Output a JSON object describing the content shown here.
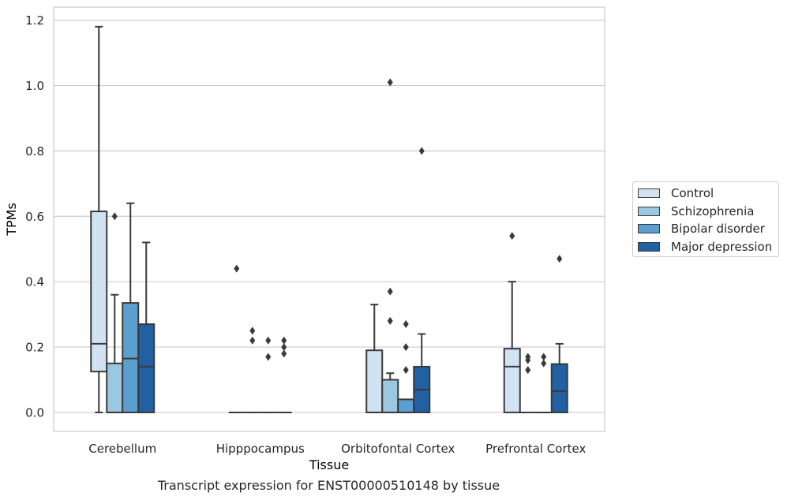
{
  "chart_data": {
    "type": "box",
    "title": "",
    "xlabel": "Tissue",
    "ylabel": "TPMs",
    "categories": [
      "Cerebellum",
      "Hipppocampus",
      "Orbitofontal Cortex",
      "Prefrontal Cortex"
    ],
    "yticks": [
      "0.0",
      "0.2",
      "0.4",
      "0.6",
      "0.8",
      "1.0",
      "1.2"
    ],
    "ylim": [
      -0.058,
      1.24
    ],
    "grid": true,
    "legend_position": "right",
    "series": [
      {
        "name": "Control",
        "color": "#d1e2f2",
        "boxes": [
          {
            "q1": 0.125,
            "median": 0.21,
            "q3": 0.615,
            "whisker_low": 0.0,
            "whisker_high": 1.18,
            "outliers": []
          },
          {
            "q1": 0.0,
            "median": 0.0,
            "q3": 0.0,
            "whisker_low": 0.0,
            "whisker_high": 0.0,
            "outliers": [
              0.44
            ]
          },
          {
            "q1": 0.0,
            "median": 0.0,
            "q3": 0.19,
            "whisker_low": 0.0,
            "whisker_high": 0.33,
            "outliers": []
          },
          {
            "q1": 0.0,
            "median": 0.14,
            "q3": 0.195,
            "whisker_low": 0.0,
            "whisker_high": 0.4,
            "outliers": [
              0.54
            ]
          }
        ]
      },
      {
        "name": "Schizophrenia",
        "color": "#9ac8e0",
        "boxes": [
          {
            "q1": 0.0,
            "median": 0.0,
            "q3": 0.15,
            "whisker_low": 0.0,
            "whisker_high": 0.36,
            "outliers": [
              0.6
            ]
          },
          {
            "q1": 0.0,
            "median": 0.0,
            "q3": 0.0,
            "whisker_low": 0.0,
            "whisker_high": 0.0,
            "outliers": [
              0.25,
              0.22
            ]
          },
          {
            "q1": 0.0,
            "median": 0.0,
            "q3": 0.1,
            "whisker_low": 0.0,
            "whisker_high": 0.12,
            "outliers": [
              1.01,
              0.37,
              0.28
            ]
          },
          {
            "q1": 0.0,
            "median": 0.0,
            "q3": 0.0,
            "whisker_low": 0.0,
            "whisker_high": 0.0,
            "outliers": [
              0.17,
              0.16,
              0.13
            ]
          }
        ]
      },
      {
        "name": "Bipolar disorder",
        "color": "#5a9fcf",
        "boxes": [
          {
            "q1": 0.0,
            "median": 0.165,
            "q3": 0.335,
            "whisker_low": 0.0,
            "whisker_high": 0.64,
            "outliers": []
          },
          {
            "q1": 0.0,
            "median": 0.0,
            "q3": 0.0,
            "whisker_low": 0.0,
            "whisker_high": 0.0,
            "outliers": [
              0.22,
              0.17
            ]
          },
          {
            "q1": 0.0,
            "median": 0.0,
            "q3": 0.04,
            "whisker_low": 0.0,
            "whisker_high": 0.04,
            "outliers": [
              0.27,
              0.2,
              0.13
            ]
          },
          {
            "q1": 0.0,
            "median": 0.0,
            "q3": 0.0,
            "whisker_low": 0.0,
            "whisker_high": 0.0,
            "outliers": [
              0.17,
              0.15
            ]
          }
        ]
      },
      {
        "name": "Major depression",
        "color": "#2060a3",
        "boxes": [
          {
            "q1": 0.0,
            "median": 0.14,
            "q3": 0.27,
            "whisker_low": 0.0,
            "whisker_high": 0.52,
            "outliers": []
          },
          {
            "q1": 0.0,
            "median": 0.0,
            "q3": 0.0,
            "whisker_low": 0.0,
            "whisker_high": 0.0,
            "outliers": [
              0.22,
              0.2,
              0.18
            ]
          },
          {
            "q1": 0.0,
            "median": 0.07,
            "q3": 0.14,
            "whisker_low": 0.0,
            "whisker_high": 0.24,
            "outliers": [
              0.8
            ]
          },
          {
            "q1": 0.0,
            "median": 0.065,
            "q3": 0.148,
            "whisker_low": 0.0,
            "whisker_high": 0.21,
            "outliers": [
              0.47
            ]
          }
        ]
      }
    ]
  },
  "caption": "Transcript expression for ENST00000510148 by tissue",
  "colors": {
    "grid": "#cccccc",
    "frame": "#cccccc",
    "box_edge": "#3a3a3a",
    "text": "#262626"
  }
}
